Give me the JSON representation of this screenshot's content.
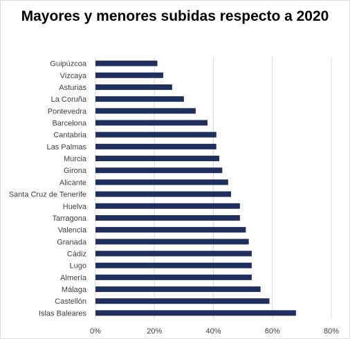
{
  "chart_data": {
    "type": "bar",
    "orientation": "horizontal",
    "title": "Mayores y menores subidas respecto a 2020",
    "categories": [
      "Guipúzcoa",
      "Vizcaya",
      "Asturias",
      "La Coruña",
      "Pontevedra",
      "Barcelona",
      "Cantabria",
      "Las Palmas",
      "Murcia",
      "Girona",
      "Alicante",
      "Santa Cruz de Tenerife",
      "Huelva",
      "Tarragona",
      "Valencia",
      "Granada",
      "Cádiz",
      "Lugo",
      "Almería",
      "Málaga",
      "Castellón",
      "Islas Baleares"
    ],
    "values": [
      21,
      23,
      26,
      30,
      34,
      38,
      41,
      41,
      42,
      43,
      45,
      46,
      49,
      49,
      51,
      52,
      53,
      53,
      53,
      56,
      59,
      68
    ],
    "xlim": [
      0,
      80
    ],
    "xticks": [
      "0%",
      "20%",
      "40%",
      "60%",
      "80%"
    ],
    "xlabel": "",
    "ylabel": "",
    "grid": "vertical",
    "legend": "none",
    "bar_color": "#1f2f5e",
    "grid_color": "#d9d9d9"
  }
}
